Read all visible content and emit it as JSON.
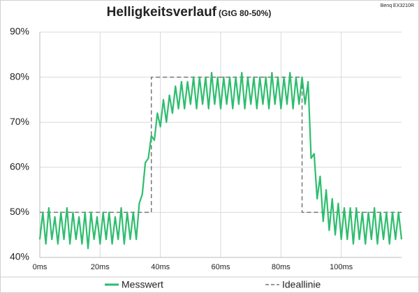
{
  "chart_data": {
    "type": "line",
    "title": "Helligkeitsverlauf",
    "subtitle": "(GtG 80-50%)",
    "annotation": "Benq EX3210R",
    "x": [
      0,
      1,
      2,
      3,
      4,
      5,
      6,
      7,
      8,
      9,
      10,
      11,
      12,
      13,
      14,
      15,
      16,
      17,
      18,
      19,
      20,
      21,
      22,
      23,
      24,
      25,
      26,
      27,
      28,
      29,
      30,
      31,
      32,
      33,
      34,
      35,
      36,
      37,
      38,
      39,
      40,
      41,
      42,
      43,
      44,
      45,
      46,
      47,
      48,
      49,
      50,
      51,
      52,
      53,
      54,
      55,
      56,
      57,
      58,
      59,
      60,
      61,
      62,
      63,
      64,
      65,
      66,
      67,
      68,
      69,
      70,
      71,
      72,
      73,
      74,
      75,
      76,
      77,
      78,
      79,
      80,
      81,
      82,
      83,
      84,
      85,
      86,
      87,
      88,
      89,
      90,
      91,
      92,
      93,
      94,
      95,
      96,
      97,
      98,
      99,
      100,
      101,
      102,
      103,
      104,
      105,
      106,
      107,
      108,
      109,
      110,
      111,
      112,
      113,
      114,
      115,
      116,
      117,
      118,
      119,
      120
    ],
    "series": [
      {
        "name": "Messwert",
        "color": "#2ebd6e",
        "style": "solid",
        "values": [
          44,
          50,
          43,
          51,
          44,
          49,
          43,
          50,
          44,
          51,
          43,
          50,
          44,
          49,
          43,
          50,
          42,
          50,
          44,
          49,
          43,
          50,
          44,
          50,
          43,
          49,
          44,
          51,
          43,
          50,
          44,
          50,
          44,
          52,
          54,
          61,
          62,
          67,
          66,
          72,
          69,
          75,
          70,
          76,
          72,
          78,
          73,
          79,
          73,
          79,
          74,
          80,
          73,
          80,
          74,
          80,
          73,
          81,
          74,
          80,
          73,
          80,
          74,
          80,
          73,
          80,
          74,
          81,
          73,
          80,
          74,
          80,
          73,
          80,
          74,
          80,
          73,
          81,
          74,
          80,
          73,
          80,
          74,
          81,
          73,
          80,
          74,
          80,
          74,
          79,
          62,
          63,
          53,
          58,
          48,
          55,
          46,
          53,
          45,
          52,
          44,
          51,
          44,
          51,
          43,
          51,
          44,
          50,
          43,
          50,
          44,
          51,
          43,
          50,
          44,
          50,
          43,
          50,
          44,
          50,
          44
        ]
      },
      {
        "name": "Ideallinie",
        "color": "#777777",
        "style": "dashed",
        "x": [
          0,
          37,
          37,
          87,
          87,
          120
        ],
        "values": [
          50,
          50,
          80,
          80,
          50,
          50
        ]
      }
    ],
    "xlim": [
      0,
      120
    ],
    "xticks": [
      {
        "value": 0,
        "label": "0ms"
      },
      {
        "value": 20,
        "label": "20ms"
      },
      {
        "value": 40,
        "label": "40ms"
      },
      {
        "value": 60,
        "label": "60ms"
      },
      {
        "value": 80,
        "label": "80ms"
      },
      {
        "value": 100,
        "label": "100ms"
      }
    ],
    "ylim": [
      40,
      90
    ],
    "yticks": [
      {
        "value": 40,
        "label": "40%"
      },
      {
        "value": 50,
        "label": "50%"
      },
      {
        "value": 60,
        "label": "60%"
      },
      {
        "value": 70,
        "label": "70%"
      },
      {
        "value": 80,
        "label": "80%"
      },
      {
        "value": 90,
        "label": "90%"
      }
    ],
    "grid": true,
    "legend": "bottom"
  }
}
